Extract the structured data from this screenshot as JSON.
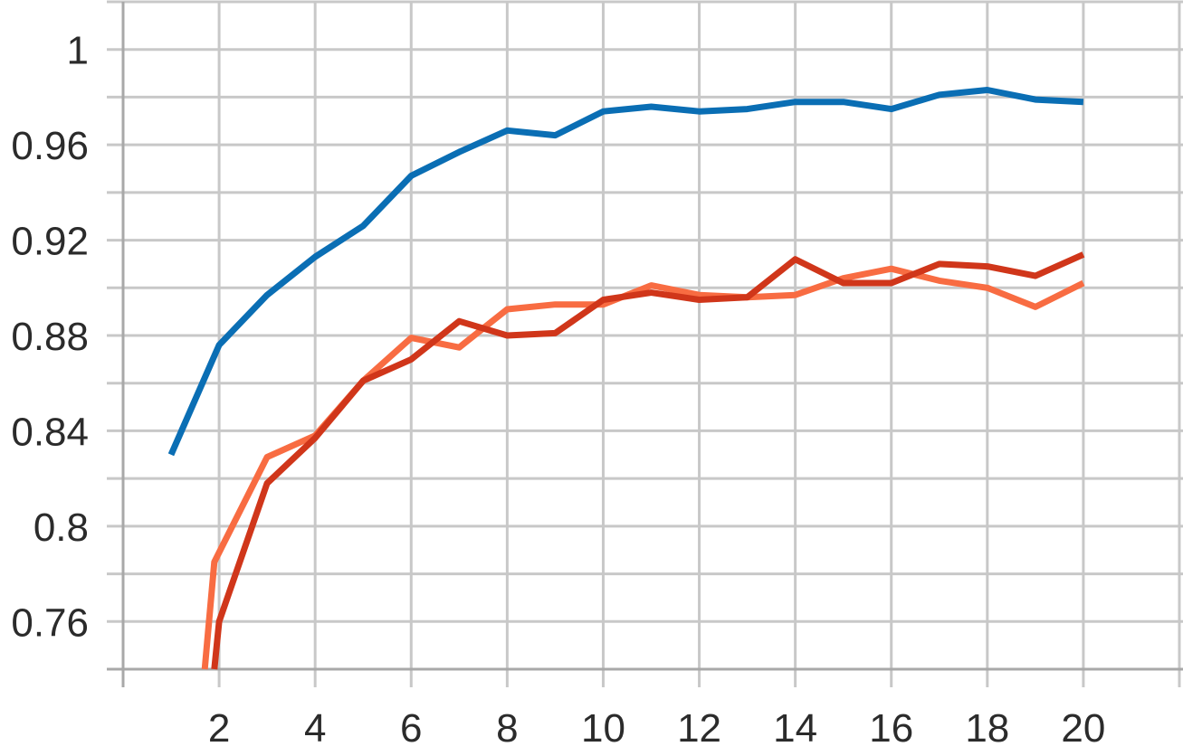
{
  "chart_data": {
    "type": "line",
    "title": "",
    "xlabel": "",
    "ylabel": "",
    "xlim": [
      0,
      22
    ],
    "ylim": [
      0.74,
      1.02
    ],
    "x_ticks": [
      2,
      4,
      6,
      8,
      10,
      12,
      14,
      16,
      18,
      20
    ],
    "x_tick_labels": [
      "2",
      "4",
      "6",
      "8",
      "10",
      "12",
      "14",
      "16",
      "18",
      "20"
    ],
    "y_ticks": [
      0.76,
      0.8,
      0.84,
      0.88,
      0.92,
      0.96,
      1.0
    ],
    "y_tick_labels": [
      "0.76",
      "0.8",
      "0.84",
      "0.88",
      "0.92",
      "0.96",
      "1"
    ],
    "y_minor_gridlines": [
      0.74,
      0.78,
      0.82,
      0.86,
      0.9,
      0.94,
      0.98,
      1.02
    ],
    "grid": true,
    "legend": "none",
    "x": [
      1,
      2,
      3,
      4,
      5,
      6,
      7,
      8,
      9,
      10,
      11,
      12,
      13,
      14,
      15,
      16,
      17,
      18,
      19,
      20
    ],
    "series": [
      {
        "color": "#0a6eb4",
        "x": [
          1,
          2,
          3,
          4,
          5,
          6,
          7,
          8,
          9,
          10,
          11,
          12,
          13,
          14,
          15,
          16,
          17,
          18,
          19,
          20
        ],
        "values": [
          0.83,
          0.876,
          0.897,
          0.913,
          0.926,
          0.947,
          0.957,
          0.966,
          0.964,
          0.974,
          0.976,
          0.974,
          0.975,
          0.978,
          0.978,
          0.975,
          0.981,
          0.983,
          0.979,
          0.978
        ]
      },
      {
        "color": "#f86c42",
        "x": [
          1.7,
          1.9,
          3,
          4,
          5,
          6,
          7,
          8,
          9,
          10,
          11,
          12,
          13,
          14,
          15,
          16,
          17,
          18,
          19,
          20
        ],
        "values": [
          0.74,
          0.785,
          0.829,
          0.838,
          0.861,
          0.879,
          0.875,
          0.891,
          0.893,
          0.893,
          0.901,
          0.897,
          0.896,
          0.897,
          0.904,
          0.908,
          0.903,
          0.9,
          0.892,
          0.902
        ]
      },
      {
        "color": "#d0361a",
        "x": [
          1.9,
          2,
          3,
          4,
          5,
          6,
          7,
          8,
          9,
          10,
          11,
          12,
          13,
          14,
          15,
          16,
          17,
          18,
          19,
          20
        ],
        "values": [
          0.74,
          0.76,
          0.818,
          0.837,
          0.861,
          0.87,
          0.886,
          0.88,
          0.881,
          0.895,
          0.898,
          0.895,
          0.896,
          0.912,
          0.902,
          0.902,
          0.91,
          0.909,
          0.905,
          0.914
        ]
      }
    ]
  }
}
